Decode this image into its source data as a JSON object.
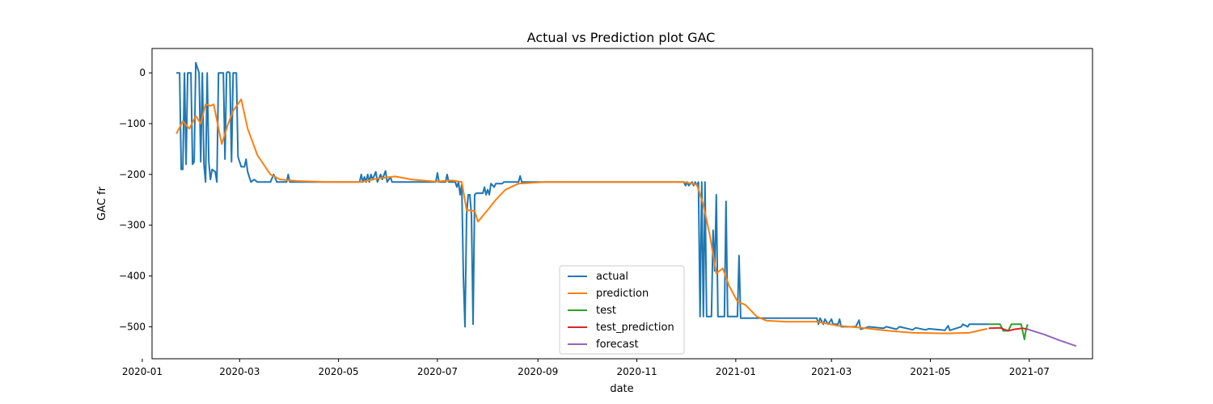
{
  "chart_data": {
    "type": "line",
    "title": "Actual vs Prediction plot GAC",
    "xlabel": "date",
    "ylabel": "GAC fr",
    "x_range": [
      "2020-01-07",
      "2021-08-09"
    ],
    "y_range": [
      -563,
      48
    ],
    "x_ticks": [
      "2020-01",
      "2020-03",
      "2020-05",
      "2020-07",
      "2020-09",
      "2020-11",
      "2021-01",
      "2021-03",
      "2021-05",
      "2021-07"
    ],
    "x_tick_values": [
      "2020-01-01",
      "2020-03-01",
      "2020-05-01",
      "2020-07-01",
      "2020-09-01",
      "2020-11-01",
      "2021-01-01",
      "2021-03-01",
      "2021-05-01",
      "2021-07-01"
    ],
    "y_ticks": [
      0,
      -100,
      -200,
      -300,
      -400,
      -500
    ],
    "y_tick_labels": [
      "0",
      "−100",
      "−200",
      "−300",
      "−400",
      "−500"
    ],
    "grid": false,
    "legend_position": "bottom-center",
    "series": [
      {
        "name": "actual",
        "color": "#1f77b4",
        "points": [
          [
            "2020-01-22",
            0
          ],
          [
            "2020-01-24",
            0
          ],
          [
            "2020-01-25",
            -190
          ],
          [
            "2020-01-26",
            -190
          ],
          [
            "2020-01-27",
            0
          ],
          [
            "2020-01-28",
            -180
          ],
          [
            "2020-01-29",
            0
          ],
          [
            "2020-01-31",
            0
          ],
          [
            "2020-02-01",
            -180
          ],
          [
            "2020-02-02",
            -175
          ],
          [
            "2020-02-03",
            20
          ],
          [
            "2020-02-04",
            10
          ],
          [
            "2020-02-05",
            0
          ],
          [
            "2020-02-06",
            -175
          ],
          [
            "2020-02-07",
            0
          ],
          [
            "2020-02-08",
            -180
          ],
          [
            "2020-02-09",
            -215
          ],
          [
            "2020-02-10",
            0
          ],
          [
            "2020-02-11",
            -175
          ],
          [
            "2020-02-12",
            -210
          ],
          [
            "2020-02-13",
            -190
          ],
          [
            "2020-02-15",
            -195
          ],
          [
            "2020-02-16",
            -215
          ],
          [
            "2020-02-17",
            0
          ],
          [
            "2020-02-20",
            0
          ],
          [
            "2020-02-21",
            -170
          ],
          [
            "2020-02-22",
            0
          ],
          [
            "2020-02-23",
            2
          ],
          [
            "2020-02-24",
            0
          ],
          [
            "2020-02-25",
            -175
          ],
          [
            "2020-02-26",
            0
          ],
          [
            "2020-02-28",
            0
          ],
          [
            "2020-02-29",
            -165
          ],
          [
            "2020-03-02",
            -185
          ],
          [
            "2020-03-04",
            -185
          ],
          [
            "2020-03-05",
            -170
          ],
          [
            "2020-03-06",
            -195
          ],
          [
            "2020-03-08",
            -215
          ],
          [
            "2020-03-10",
            -210
          ],
          [
            "2020-03-12",
            -215
          ],
          [
            "2020-03-20",
            -215
          ],
          [
            "2020-03-22",
            -200
          ],
          [
            "2020-03-24",
            -215
          ],
          [
            "2020-03-30",
            -215
          ],
          [
            "2020-03-31",
            -200
          ],
          [
            "2020-04-01",
            -215
          ],
          [
            "2020-05-14",
            -215
          ],
          [
            "2020-05-15",
            -200
          ],
          [
            "2020-05-16",
            -215
          ],
          [
            "2020-05-17",
            -205
          ],
          [
            "2020-05-18",
            -215
          ],
          [
            "2020-05-19",
            -200
          ],
          [
            "2020-05-20",
            -215
          ],
          [
            "2020-05-21",
            -200
          ],
          [
            "2020-05-22",
            -210
          ],
          [
            "2020-05-24",
            -195
          ],
          [
            "2020-05-25",
            -215
          ],
          [
            "2020-05-27",
            -200
          ],
          [
            "2020-05-28",
            -210
          ],
          [
            "2020-05-30",
            -193
          ],
          [
            "2020-05-31",
            -215
          ],
          [
            "2020-06-02",
            -205
          ],
          [
            "2020-06-03",
            -215
          ],
          [
            "2020-06-30",
            -215
          ],
          [
            "2020-07-01",
            -197
          ],
          [
            "2020-07-02",
            -215
          ],
          [
            "2020-07-06",
            -215
          ],
          [
            "2020-07-07",
            -200
          ],
          [
            "2020-07-08",
            -215
          ],
          [
            "2020-07-12",
            -215
          ],
          [
            "2020-07-13",
            -225
          ],
          [
            "2020-07-14",
            -215
          ],
          [
            "2020-07-15",
            -240
          ],
          [
            "2020-07-16",
            -220
          ],
          [
            "2020-07-17",
            -400
          ],
          [
            "2020-07-18",
            -500
          ],
          [
            "2020-07-19",
            -280
          ],
          [
            "2020-07-20",
            -240
          ],
          [
            "2020-07-21",
            -240
          ],
          [
            "2020-07-22",
            -280
          ],
          [
            "2020-07-23",
            -495
          ],
          [
            "2020-07-24",
            -240
          ],
          [
            "2020-07-25",
            -237
          ],
          [
            "2020-07-29",
            -237
          ],
          [
            "2020-07-30",
            -225
          ],
          [
            "2020-07-31",
            -240
          ],
          [
            "2020-08-01",
            -230
          ],
          [
            "2020-08-02",
            -240
          ],
          [
            "2020-08-03",
            -218
          ],
          [
            "2020-08-05",
            -225
          ],
          [
            "2020-08-06",
            -218
          ],
          [
            "2020-08-10",
            -218
          ],
          [
            "2020-08-11",
            -215
          ],
          [
            "2020-08-20",
            -215
          ],
          [
            "2020-08-21",
            -203
          ],
          [
            "2020-08-22",
            -215
          ],
          [
            "2020-11-30",
            -215
          ],
          [
            "2020-12-01",
            -222
          ],
          [
            "2020-12-02",
            -215
          ],
          [
            "2020-12-03",
            -222
          ],
          [
            "2020-12-05",
            -215
          ],
          [
            "2020-12-06",
            -222
          ],
          [
            "2020-12-07",
            -215
          ],
          [
            "2020-12-08",
            -222
          ],
          [
            "2020-12-09",
            -215
          ],
          [
            "2020-12-10",
            -480
          ],
          [
            "2020-12-11",
            -215
          ],
          [
            "2020-12-12",
            -480
          ],
          [
            "2020-12-13",
            -215
          ],
          [
            "2020-12-14",
            -480
          ],
          [
            "2020-12-17",
            -480
          ],
          [
            "2020-12-18",
            -310
          ],
          [
            "2020-12-19",
            -390
          ],
          [
            "2020-12-20",
            -240
          ],
          [
            "2020-12-21",
            -480
          ],
          [
            "2020-12-25",
            -480
          ],
          [
            "2020-12-26",
            -253
          ],
          [
            "2020-12-27",
            -480
          ],
          [
            "2021-01-02",
            -480
          ],
          [
            "2021-01-03",
            -360
          ],
          [
            "2021-01-04",
            -483
          ],
          [
            "2021-02-20",
            -483
          ],
          [
            "2021-02-21",
            -495
          ],
          [
            "2021-02-22",
            -483
          ],
          [
            "2021-02-24",
            -495
          ],
          [
            "2021-02-25",
            -485
          ],
          [
            "2021-02-27",
            -495
          ],
          [
            "2021-03-01",
            -485
          ],
          [
            "2021-03-02",
            -495
          ],
          [
            "2021-03-05",
            -495
          ],
          [
            "2021-03-06",
            -485
          ],
          [
            "2021-03-07",
            -500
          ],
          [
            "2021-03-16",
            -500
          ],
          [
            "2021-03-18",
            -487
          ],
          [
            "2021-03-19",
            -505
          ],
          [
            "2021-03-24",
            -500
          ],
          [
            "2021-04-02",
            -503
          ],
          [
            "2021-04-04",
            -500
          ],
          [
            "2021-04-10",
            -505
          ],
          [
            "2021-04-12",
            -500
          ],
          [
            "2021-04-20",
            -506
          ],
          [
            "2021-04-22",
            -502
          ],
          [
            "2021-04-28",
            -506
          ],
          [
            "2021-04-30",
            -504
          ],
          [
            "2021-05-10",
            -507
          ],
          [
            "2021-05-12",
            -498
          ],
          [
            "2021-05-13",
            -507
          ],
          [
            "2021-05-20",
            -500
          ],
          [
            "2021-05-21",
            -495
          ],
          [
            "2021-05-24",
            -500
          ],
          [
            "2021-05-25",
            -495
          ],
          [
            "2021-06-06",
            -495
          ]
        ]
      },
      {
        "name": "prediction",
        "color": "#ff7f0e",
        "points": [
          [
            "2020-01-22",
            -120
          ],
          [
            "2020-01-26",
            -95
          ],
          [
            "2020-01-30",
            -110
          ],
          [
            "2020-02-03",
            -85
          ],
          [
            "2020-02-06",
            -100
          ],
          [
            "2020-02-09",
            -62
          ],
          [
            "2020-02-12",
            -65
          ],
          [
            "2020-02-14",
            -62
          ],
          [
            "2020-02-19",
            -140
          ],
          [
            "2020-02-23",
            -100
          ],
          [
            "2020-02-26",
            -75
          ],
          [
            "2020-03-02",
            -52
          ],
          [
            "2020-03-06",
            -110
          ],
          [
            "2020-03-12",
            -162
          ],
          [
            "2020-03-20",
            -200
          ],
          [
            "2020-03-26",
            -210
          ],
          [
            "2020-04-05",
            -213
          ],
          [
            "2020-04-25",
            -215
          ],
          [
            "2020-05-15",
            -215
          ],
          [
            "2020-05-25",
            -208
          ],
          [
            "2020-06-05",
            -204
          ],
          [
            "2020-06-15",
            -210
          ],
          [
            "2020-06-30",
            -214
          ],
          [
            "2020-07-10",
            -212
          ],
          [
            "2020-07-16",
            -215
          ],
          [
            "2020-07-19",
            -270
          ],
          [
            "2020-07-24",
            -272
          ],
          [
            "2020-07-26",
            -293
          ],
          [
            "2020-08-01",
            -270
          ],
          [
            "2020-08-06",
            -250
          ],
          [
            "2020-08-12",
            -230
          ],
          [
            "2020-08-20",
            -218
          ],
          [
            "2020-09-05",
            -215
          ],
          [
            "2020-11-30",
            -215
          ],
          [
            "2020-12-08",
            -220
          ],
          [
            "2020-12-12",
            -260
          ],
          [
            "2020-12-16",
            -320
          ],
          [
            "2020-12-20",
            -395
          ],
          [
            "2020-12-24",
            -385
          ],
          [
            "2020-12-28",
            -420
          ],
          [
            "2021-01-02",
            -450
          ],
          [
            "2021-01-07",
            -457
          ],
          [
            "2021-01-14",
            -480
          ],
          [
            "2021-01-20",
            -488
          ],
          [
            "2021-02-01",
            -490
          ],
          [
            "2021-02-20",
            -490
          ],
          [
            "2021-03-05",
            -498
          ],
          [
            "2021-03-20",
            -502
          ],
          [
            "2021-04-05",
            -508
          ],
          [
            "2021-04-20",
            -512
          ],
          [
            "2021-05-10",
            -513
          ],
          [
            "2021-05-25",
            -512
          ],
          [
            "2021-06-05",
            -504
          ]
        ]
      },
      {
        "name": "test",
        "color": "#2ca02c",
        "points": [
          [
            "2021-06-06",
            -495
          ],
          [
            "2021-06-13",
            -495
          ],
          [
            "2021-06-15",
            -508
          ],
          [
            "2021-06-18",
            -508
          ],
          [
            "2021-06-20",
            -495
          ],
          [
            "2021-06-26",
            -495
          ],
          [
            "2021-06-28",
            -525
          ],
          [
            "2021-06-29",
            -505
          ],
          [
            "2021-06-30",
            -495
          ]
        ]
      },
      {
        "name": "test_prediction",
        "color": "#d62728",
        "points": [
          [
            "2021-06-06",
            -503
          ],
          [
            "2021-06-13",
            -502
          ],
          [
            "2021-06-18",
            -508
          ],
          [
            "2021-06-22",
            -505
          ],
          [
            "2021-06-27",
            -503
          ],
          [
            "2021-06-30",
            -505
          ]
        ]
      },
      {
        "name": "forecast",
        "color": "#9467bd",
        "points": [
          [
            "2021-06-30",
            -505
          ],
          [
            "2021-07-10",
            -515
          ],
          [
            "2021-07-20",
            -527
          ],
          [
            "2021-07-30",
            -538
          ]
        ]
      }
    ]
  }
}
